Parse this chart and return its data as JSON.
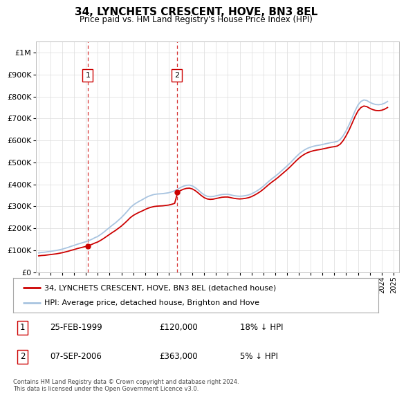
{
  "title": "34, LYNCHETS CRESCENT, HOVE, BN3 8EL",
  "subtitle": "Price paid vs. HM Land Registry's House Price Index (HPI)",
  "legend_line1": "34, LYNCHETS CRESCENT, HOVE, BN3 8EL (detached house)",
  "legend_line2": "HPI: Average price, detached house, Brighton and Hove",
  "footnote": "Contains HM Land Registry data © Crown copyright and database right 2024.\nThis data is licensed under the Open Government Licence v3.0.",
  "table_rows": [
    {
      "num": "1",
      "date": "25-FEB-1999",
      "price": "£120,000",
      "hpi": "18% ↓ HPI"
    },
    {
      "num": "2",
      "date": "07-SEP-2006",
      "price": "£363,000",
      "hpi": "5% ↓ HPI"
    }
  ],
  "purchase1_year": 1999.15,
  "purchase1_price": 120000,
  "purchase2_year": 2006.69,
  "purchase2_price": 363000,
  "hpi_color": "#a8c4e0",
  "price_color": "#cc0000",
  "vline_color": "#cc0000",
  "ylim_min": 0,
  "ylim_max": 1050000,
  "xmin": 1994.8,
  "xmax": 2025.5,
  "background_color": "#ffffff",
  "grid_color": "#e0e0e0",
  "yticks": [
    0,
    100000,
    200000,
    300000,
    400000,
    500000,
    600000,
    700000,
    800000,
    900000,
    1000000
  ],
  "xticks": [
    1995,
    1996,
    1997,
    1998,
    1999,
    2000,
    2001,
    2002,
    2003,
    2004,
    2005,
    2006,
    2007,
    2008,
    2009,
    2010,
    2011,
    2012,
    2013,
    2014,
    2015,
    2016,
    2017,
    2018,
    2019,
    2020,
    2021,
    2022,
    2023,
    2024,
    2025
  ],
  "hpi_values_x": [
    1995.0,
    1995.25,
    1995.5,
    1995.75,
    1996.0,
    1996.25,
    1996.5,
    1996.75,
    1997.0,
    1997.25,
    1997.5,
    1997.75,
    1998.0,
    1998.25,
    1998.5,
    1998.75,
    1999.0,
    1999.25,
    1999.5,
    1999.75,
    2000.0,
    2000.25,
    2000.5,
    2000.75,
    2001.0,
    2001.25,
    2001.5,
    2001.75,
    2002.0,
    2002.25,
    2002.5,
    2002.75,
    2003.0,
    2003.25,
    2003.5,
    2003.75,
    2004.0,
    2004.25,
    2004.5,
    2004.75,
    2005.0,
    2005.25,
    2005.5,
    2005.75,
    2006.0,
    2006.25,
    2006.5,
    2006.75,
    2007.0,
    2007.25,
    2007.5,
    2007.75,
    2008.0,
    2008.25,
    2008.5,
    2008.75,
    2009.0,
    2009.25,
    2009.5,
    2009.75,
    2010.0,
    2010.25,
    2010.5,
    2010.75,
    2011.0,
    2011.25,
    2011.5,
    2011.75,
    2012.0,
    2012.25,
    2012.5,
    2012.75,
    2013.0,
    2013.25,
    2013.5,
    2013.75,
    2014.0,
    2014.25,
    2014.5,
    2014.75,
    2015.0,
    2015.25,
    2015.5,
    2015.75,
    2016.0,
    2016.25,
    2016.5,
    2016.75,
    2017.0,
    2017.25,
    2017.5,
    2017.75,
    2018.0,
    2018.25,
    2018.5,
    2018.75,
    2019.0,
    2019.25,
    2019.5,
    2019.75,
    2020.0,
    2020.25,
    2020.5,
    2020.75,
    2021.0,
    2021.25,
    2021.5,
    2021.75,
    2022.0,
    2022.25,
    2022.5,
    2022.75,
    2023.0,
    2023.25,
    2023.5,
    2023.75,
    2024.0,
    2024.25,
    2024.5
  ],
  "hpi_values_y": [
    88000,
    90000,
    91000,
    93000,
    95000,
    97000,
    99000,
    102000,
    105000,
    109000,
    113000,
    118000,
    122000,
    127000,
    131000,
    135000,
    139000,
    144000,
    150000,
    157000,
    163000,
    172000,
    182000,
    193000,
    204000,
    215000,
    225000,
    237000,
    249000,
    263000,
    278000,
    294000,
    306000,
    315000,
    323000,
    330000,
    338000,
    345000,
    350000,
    354000,
    356000,
    357000,
    358000,
    360000,
    362000,
    366000,
    371000,
    378000,
    386000,
    392000,
    396000,
    397000,
    393000,
    385000,
    374000,
    362000,
    352000,
    346000,
    344000,
    345000,
    348000,
    351000,
    354000,
    355000,
    355000,
    352000,
    349000,
    347000,
    346000,
    347000,
    349000,
    352000,
    357000,
    364000,
    372000,
    381000,
    392000,
    404000,
    416000,
    427000,
    437000,
    448000,
    460000,
    472000,
    484000,
    497000,
    511000,
    525000,
    538000,
    549000,
    558000,
    565000,
    570000,
    574000,
    577000,
    579000,
    582000,
    585000,
    588000,
    591000,
    593000,
    596000,
    605000,
    622000,
    645000,
    672000,
    703000,
    735000,
    762000,
    778000,
    785000,
    782000,
    774000,
    768000,
    764000,
    763000,
    765000,
    770000,
    778000
  ]
}
